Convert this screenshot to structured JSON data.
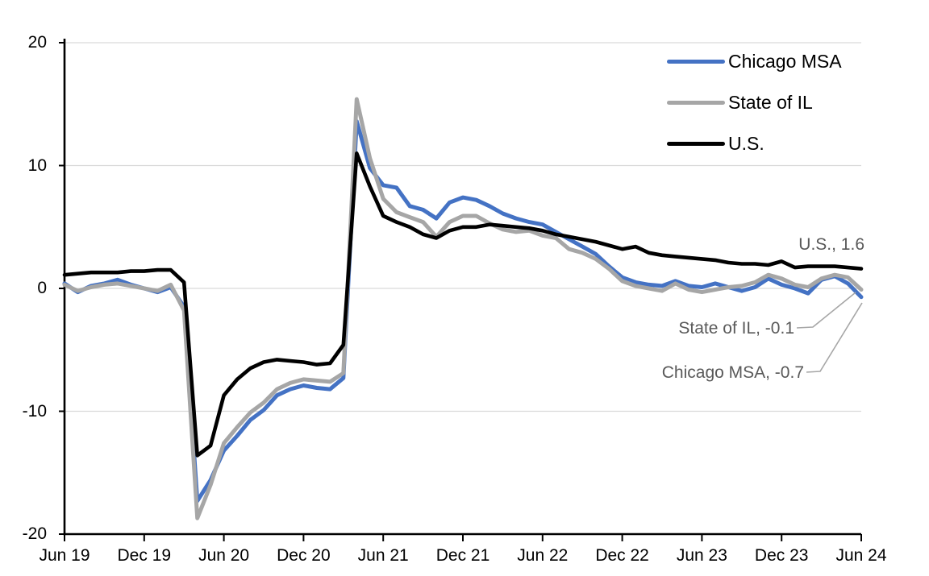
{
  "colors": {
    "chicago_msa": "#4472C4",
    "state_of_il": "#A6A6A6",
    "us": "#000000",
    "gridline": "#D9D9D9",
    "axis": "#000000",
    "annotation_text": "#595959",
    "leader_line": "#A6A6A6",
    "background": "#FFFFFF"
  },
  "legend": {
    "items": [
      {
        "label": "Chicago MSA",
        "color": "#4472C4"
      },
      {
        "label": "State of IL",
        "color": "#A6A6A6"
      },
      {
        "label": "U.S.",
        "color": "#000000"
      }
    ]
  },
  "chart_data": {
    "type": "line",
    "title": "",
    "xlabel": "",
    "ylabel": "",
    "ylim": [
      -20,
      20
    ],
    "y_ticks": [
      20,
      10,
      0,
      -10,
      -20
    ],
    "grid": "horizontal",
    "legend_position": "top-right",
    "x_tick_every": 6,
    "x_tick_labels": [
      "Jun 19",
      "Dec 19",
      "Jun 20",
      "Dec 20",
      "Jun 21",
      "Dec 21",
      "Jun 22",
      "Dec 22",
      "Jun 23",
      "Dec 23",
      "Jun 24"
    ],
    "x_months": [
      "Jun 19",
      "Jul 19",
      "Aug 19",
      "Sep 19",
      "Oct 19",
      "Nov 19",
      "Dec 19",
      "Jan 20",
      "Feb 20",
      "Mar 20",
      "Apr 20",
      "May 20",
      "Jun 20",
      "Jul 20",
      "Aug 20",
      "Sep 20",
      "Oct 20",
      "Nov 20",
      "Dec 20",
      "Jan 21",
      "Feb 21",
      "Mar 21",
      "Apr 21",
      "May 21",
      "Jun 21",
      "Jul 21",
      "Aug 21",
      "Sep 21",
      "Oct 21",
      "Nov 21",
      "Dec 21",
      "Jan 22",
      "Feb 22",
      "Mar 22",
      "Apr 22",
      "May 22",
      "Jun 22",
      "Jul 22",
      "Aug 22",
      "Sep 22",
      "Oct 22",
      "Nov 22",
      "Dec 22",
      "Jan 23",
      "Feb 23",
      "Mar 23",
      "Apr 23",
      "May 23",
      "Jun 23",
      "Jul 23",
      "Aug 23",
      "Sep 23",
      "Oct 23",
      "Nov 23",
      "Dec 23",
      "Jan 24",
      "Feb 24",
      "Mar 24",
      "Apr 24",
      "May 24",
      "Jun 24"
    ],
    "series": [
      {
        "name": "Chicago MSA",
        "color": "#4472C4",
        "values": [
          0.4,
          -0.3,
          0.2,
          0.4,
          0.7,
          0.3,
          0.0,
          -0.3,
          0.1,
          -1.5,
          -17.3,
          -15.6,
          -13.2,
          -12.0,
          -10.7,
          -9.9,
          -8.7,
          -8.2,
          -7.9,
          -8.1,
          -8.2,
          -7.3,
          13.6,
          9.8,
          8.4,
          8.2,
          6.7,
          6.4,
          5.7,
          7.0,
          7.4,
          7.2,
          6.7,
          6.1,
          5.7,
          5.4,
          5.2,
          4.6,
          4.0,
          3.4,
          2.8,
          1.8,
          0.9,
          0.5,
          0.3,
          0.2,
          0.6,
          0.2,
          0.1,
          0.4,
          0.1,
          -0.2,
          0.1,
          0.8,
          0.3,
          0.0,
          -0.4,
          0.7,
          1.0,
          0.4,
          -0.7
        ]
      },
      {
        "name": "State of IL",
        "color": "#A6A6A6",
        "values": [
          0.3,
          -0.2,
          0.1,
          0.3,
          0.4,
          0.2,
          0.0,
          -0.2,
          0.3,
          -1.8,
          -18.7,
          -16.0,
          -12.6,
          -11.3,
          -10.1,
          -9.3,
          -8.2,
          -7.7,
          -7.4,
          -7.5,
          -7.6,
          -6.9,
          15.4,
          10.6,
          7.3,
          6.2,
          5.8,
          5.4,
          4.2,
          5.4,
          5.9,
          5.9,
          5.3,
          4.8,
          4.6,
          4.7,
          4.3,
          4.1,
          3.2,
          2.9,
          2.4,
          1.6,
          0.6,
          0.2,
          0.0,
          -0.2,
          0.4,
          -0.1,
          -0.3,
          -0.1,
          0.1,
          0.2,
          0.5,
          1.1,
          0.8,
          0.3,
          0.1,
          0.8,
          1.1,
          0.9,
          -0.1
        ]
      },
      {
        "name": "U.S.",
        "color": "#000000",
        "values": [
          1.1,
          1.2,
          1.3,
          1.3,
          1.3,
          1.4,
          1.4,
          1.5,
          1.5,
          0.5,
          -13.6,
          -12.8,
          -8.7,
          -7.4,
          -6.5,
          -6.0,
          -5.8,
          -5.9,
          -6.0,
          -6.2,
          -6.1,
          -4.6,
          11.0,
          8.3,
          5.9,
          5.4,
          5.0,
          4.4,
          4.1,
          4.7,
          5.0,
          5.0,
          5.2,
          5.1,
          5.0,
          4.9,
          4.7,
          4.4,
          4.2,
          4.0,
          3.8,
          3.5,
          3.2,
          3.4,
          2.9,
          2.7,
          2.6,
          2.5,
          2.4,
          2.3,
          2.1,
          2.0,
          2.0,
          1.9,
          2.2,
          1.7,
          1.8,
          1.8,
          1.8,
          1.7,
          1.6
        ]
      }
    ],
    "annotations": [
      {
        "series": "U.S.",
        "value": 1.6,
        "text": "U.S., 1.6"
      },
      {
        "series": "State of IL",
        "value": -0.1,
        "text": "State of IL, -0.1"
      },
      {
        "series": "Chicago MSA",
        "value": -0.7,
        "text": "Chicago MSA, -0.7"
      }
    ]
  }
}
